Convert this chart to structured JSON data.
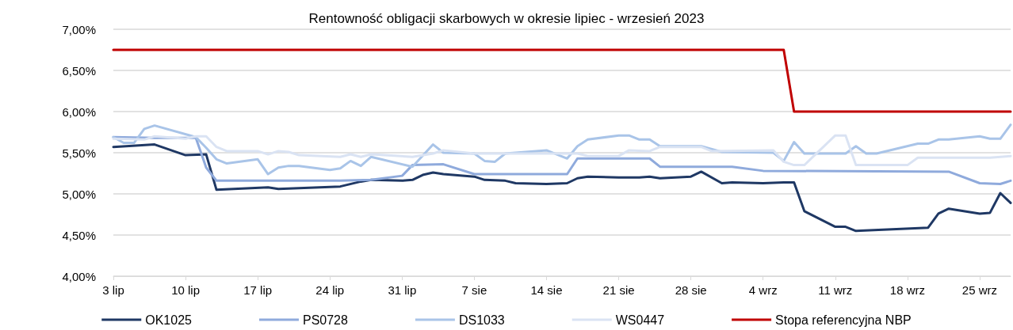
{
  "chart_data": {
    "type": "line",
    "title": "Rentowność obligacji skarbowych w okresie lipiec - wrzesień 2023",
    "xlim": [
      "2023-07-03",
      "2023-09-28"
    ],
    "xticks": [
      {
        "value": "2023-07-03",
        "label": "3 lip"
      },
      {
        "value": "2023-07-10",
        "label": "10 lip"
      },
      {
        "value": "2023-07-17",
        "label": "17 lip"
      },
      {
        "value": "2023-07-24",
        "label": "24 lip"
      },
      {
        "value": "2023-07-31",
        "label": "31 lip"
      },
      {
        "value": "2023-08-07",
        "label": "7 sie"
      },
      {
        "value": "2023-08-14",
        "label": "14 sie"
      },
      {
        "value": "2023-08-21",
        "label": "21 sie"
      },
      {
        "value": "2023-08-28",
        "label": "28 sie"
      },
      {
        "value": "2023-09-04",
        "label": "4 wrz"
      },
      {
        "value": "2023-09-11",
        "label": "11 wrz"
      },
      {
        "value": "2023-09-18",
        "label": "18 wrz"
      },
      {
        "value": "2023-09-25",
        "label": "25 wrz"
      }
    ],
    "ylim": [
      4,
      7
    ],
    "yticks": [
      {
        "value": 4,
        "label": "4,00%"
      },
      {
        "value": 4.5,
        "label": "4,50%"
      },
      {
        "value": 5,
        "label": "5,00%"
      },
      {
        "value": 5.5,
        "label": "5,50%"
      },
      {
        "value": 6,
        "label": "6,00%"
      },
      {
        "value": 6.5,
        "label": "6,50%"
      },
      {
        "value": 7,
        "label": "7,00%"
      }
    ],
    "grid": "y",
    "legend": "bottom",
    "marker": "none",
    "line_style": "solid",
    "series": [
      {
        "name": "OK1025",
        "color": "#1f3864",
        "x": [
          "2023-07-03",
          "2023-07-07",
          "2023-07-10",
          "2023-07-12",
          "2023-07-13",
          "2023-07-18",
          "2023-07-19",
          "2023-07-25",
          "2023-07-27",
          "2023-07-28",
          "2023-07-31",
          "2023-08-01",
          "2023-08-02",
          "2023-08-03",
          "2023-08-04",
          "2023-08-07",
          "2023-08-08",
          "2023-08-10",
          "2023-08-11",
          "2023-08-14",
          "2023-08-16",
          "2023-08-17",
          "2023-08-18",
          "2023-08-21",
          "2023-08-23",
          "2023-08-24",
          "2023-08-25",
          "2023-08-28",
          "2023-08-29",
          "2023-08-31",
          "2023-09-01",
          "2023-09-04",
          "2023-09-06",
          "2023-09-07",
          "2023-09-08",
          "2023-09-11",
          "2023-09-12",
          "2023-09-13",
          "2023-09-20",
          "2023-09-21",
          "2023-09-22",
          "2023-09-25",
          "2023-09-26",
          "2023-09-27",
          "2023-09-28"
        ],
        "values": [
          5.57,
          5.6,
          5.47,
          5.48,
          5.05,
          5.08,
          5.06,
          5.09,
          5.15,
          5.17,
          5.16,
          5.17,
          5.23,
          5.26,
          5.24,
          5.21,
          5.17,
          5.16,
          5.13,
          5.12,
          5.13,
          5.19,
          5.21,
          5.2,
          5.2,
          5.21,
          5.19,
          5.21,
          5.27,
          5.13,
          5.14,
          5.13,
          5.14,
          5.14,
          4.79,
          4.6,
          4.6,
          4.55,
          4.59,
          4.76,
          4.82,
          4.76,
          4.77,
          5.01,
          4.89
        ]
      },
      {
        "name": "PS0728",
        "color": "#8faadc",
        "x": [
          "2023-07-03",
          "2023-07-07",
          "2023-07-11",
          "2023-07-12",
          "2023-07-13",
          "2023-07-25",
          "2023-07-28",
          "2023-07-31",
          "2023-08-01",
          "2023-08-04",
          "2023-08-07",
          "2023-08-16",
          "2023-08-17",
          "2023-08-24",
          "2023-08-25",
          "2023-09-01",
          "2023-09-04",
          "2023-09-22",
          "2023-09-25",
          "2023-09-27",
          "2023-09-28"
        ],
        "values": [
          5.69,
          5.68,
          5.68,
          5.32,
          5.16,
          5.16,
          5.17,
          5.22,
          5.35,
          5.36,
          5.24,
          5.24,
          5.43,
          5.43,
          5.33,
          5.33,
          5.28,
          5.27,
          5.13,
          5.12,
          5.16
        ]
      },
      {
        "name": "DS1033",
        "color": "#a9c4e8",
        "x": [
          "2023-07-03",
          "2023-07-04",
          "2023-07-05",
          "2023-07-06",
          "2023-07-07",
          "2023-07-11",
          "2023-07-12",
          "2023-07-13",
          "2023-07-14",
          "2023-07-17",
          "2023-07-18",
          "2023-07-19",
          "2023-07-20",
          "2023-07-21",
          "2023-07-24",
          "2023-07-25",
          "2023-07-26",
          "2023-07-27",
          "2023-07-28",
          "2023-08-01",
          "2023-08-03",
          "2023-08-04",
          "2023-08-07",
          "2023-08-08",
          "2023-08-09",
          "2023-08-10",
          "2023-08-14",
          "2023-08-16",
          "2023-08-17",
          "2023-08-18",
          "2023-08-21",
          "2023-08-22",
          "2023-08-23",
          "2023-08-24",
          "2023-08-25",
          "2023-08-29",
          "2023-08-31",
          "2023-09-05",
          "2023-09-06",
          "2023-09-07",
          "2023-09-08",
          "2023-09-12",
          "2023-09-13",
          "2023-09-14",
          "2023-09-15",
          "2023-09-19",
          "2023-09-20",
          "2023-09-21",
          "2023-09-22",
          "2023-09-25",
          "2023-09-26",
          "2023-09-27",
          "2023-09-28"
        ],
        "values": [
          5.69,
          5.62,
          5.62,
          5.79,
          5.83,
          5.69,
          5.56,
          5.42,
          5.37,
          5.42,
          5.24,
          5.32,
          5.34,
          5.34,
          5.29,
          5.31,
          5.4,
          5.34,
          5.45,
          5.33,
          5.6,
          5.5,
          5.49,
          5.4,
          5.39,
          5.49,
          5.53,
          5.43,
          5.58,
          5.66,
          5.71,
          5.71,
          5.66,
          5.66,
          5.58,
          5.58,
          5.51,
          5.5,
          5.4,
          5.63,
          5.49,
          5.49,
          5.58,
          5.49,
          5.49,
          5.61,
          5.61,
          5.66,
          5.66,
          5.7,
          5.67,
          5.67,
          5.84
        ]
      },
      {
        "name": "WS0447",
        "color": "#dae3f3",
        "x": [
          "2023-07-03",
          "2023-07-06",
          "2023-07-07",
          "2023-07-10",
          "2023-07-11",
          "2023-07-12",
          "2023-07-13",
          "2023-07-14",
          "2023-07-17",
          "2023-07-18",
          "2023-07-19",
          "2023-07-20",
          "2023-07-21",
          "2023-07-25",
          "2023-07-26",
          "2023-07-27",
          "2023-07-28",
          "2023-08-01",
          "2023-08-03",
          "2023-08-04",
          "2023-08-07",
          "2023-08-17",
          "2023-08-18",
          "2023-08-21",
          "2023-08-22",
          "2023-08-24",
          "2023-08-25",
          "2023-08-29",
          "2023-08-30",
          "2023-09-05",
          "2023-09-06",
          "2023-09-07",
          "2023-09-08",
          "2023-09-11",
          "2023-09-12",
          "2023-09-13",
          "2023-09-18",
          "2023-09-19",
          "2023-09-26",
          "2023-09-28"
        ],
        "values": [
          5.67,
          5.66,
          5.7,
          5.67,
          5.7,
          5.7,
          5.57,
          5.52,
          5.52,
          5.48,
          5.52,
          5.51,
          5.47,
          5.45,
          5.48,
          5.45,
          5.48,
          5.45,
          5.49,
          5.53,
          5.49,
          5.49,
          5.46,
          5.46,
          5.53,
          5.52,
          5.57,
          5.57,
          5.52,
          5.53,
          5.39,
          5.35,
          5.35,
          5.71,
          5.71,
          5.35,
          5.35,
          5.44,
          5.44,
          5.46
        ]
      },
      {
        "name": "Stopa referencyjna NBP",
        "color": "#c00000",
        "x": [
          "2023-07-03",
          "2023-09-06",
          "2023-09-07",
          "2023-09-28"
        ],
        "values": [
          6.75,
          6.75,
          6.0,
          6.0
        ]
      }
    ]
  }
}
